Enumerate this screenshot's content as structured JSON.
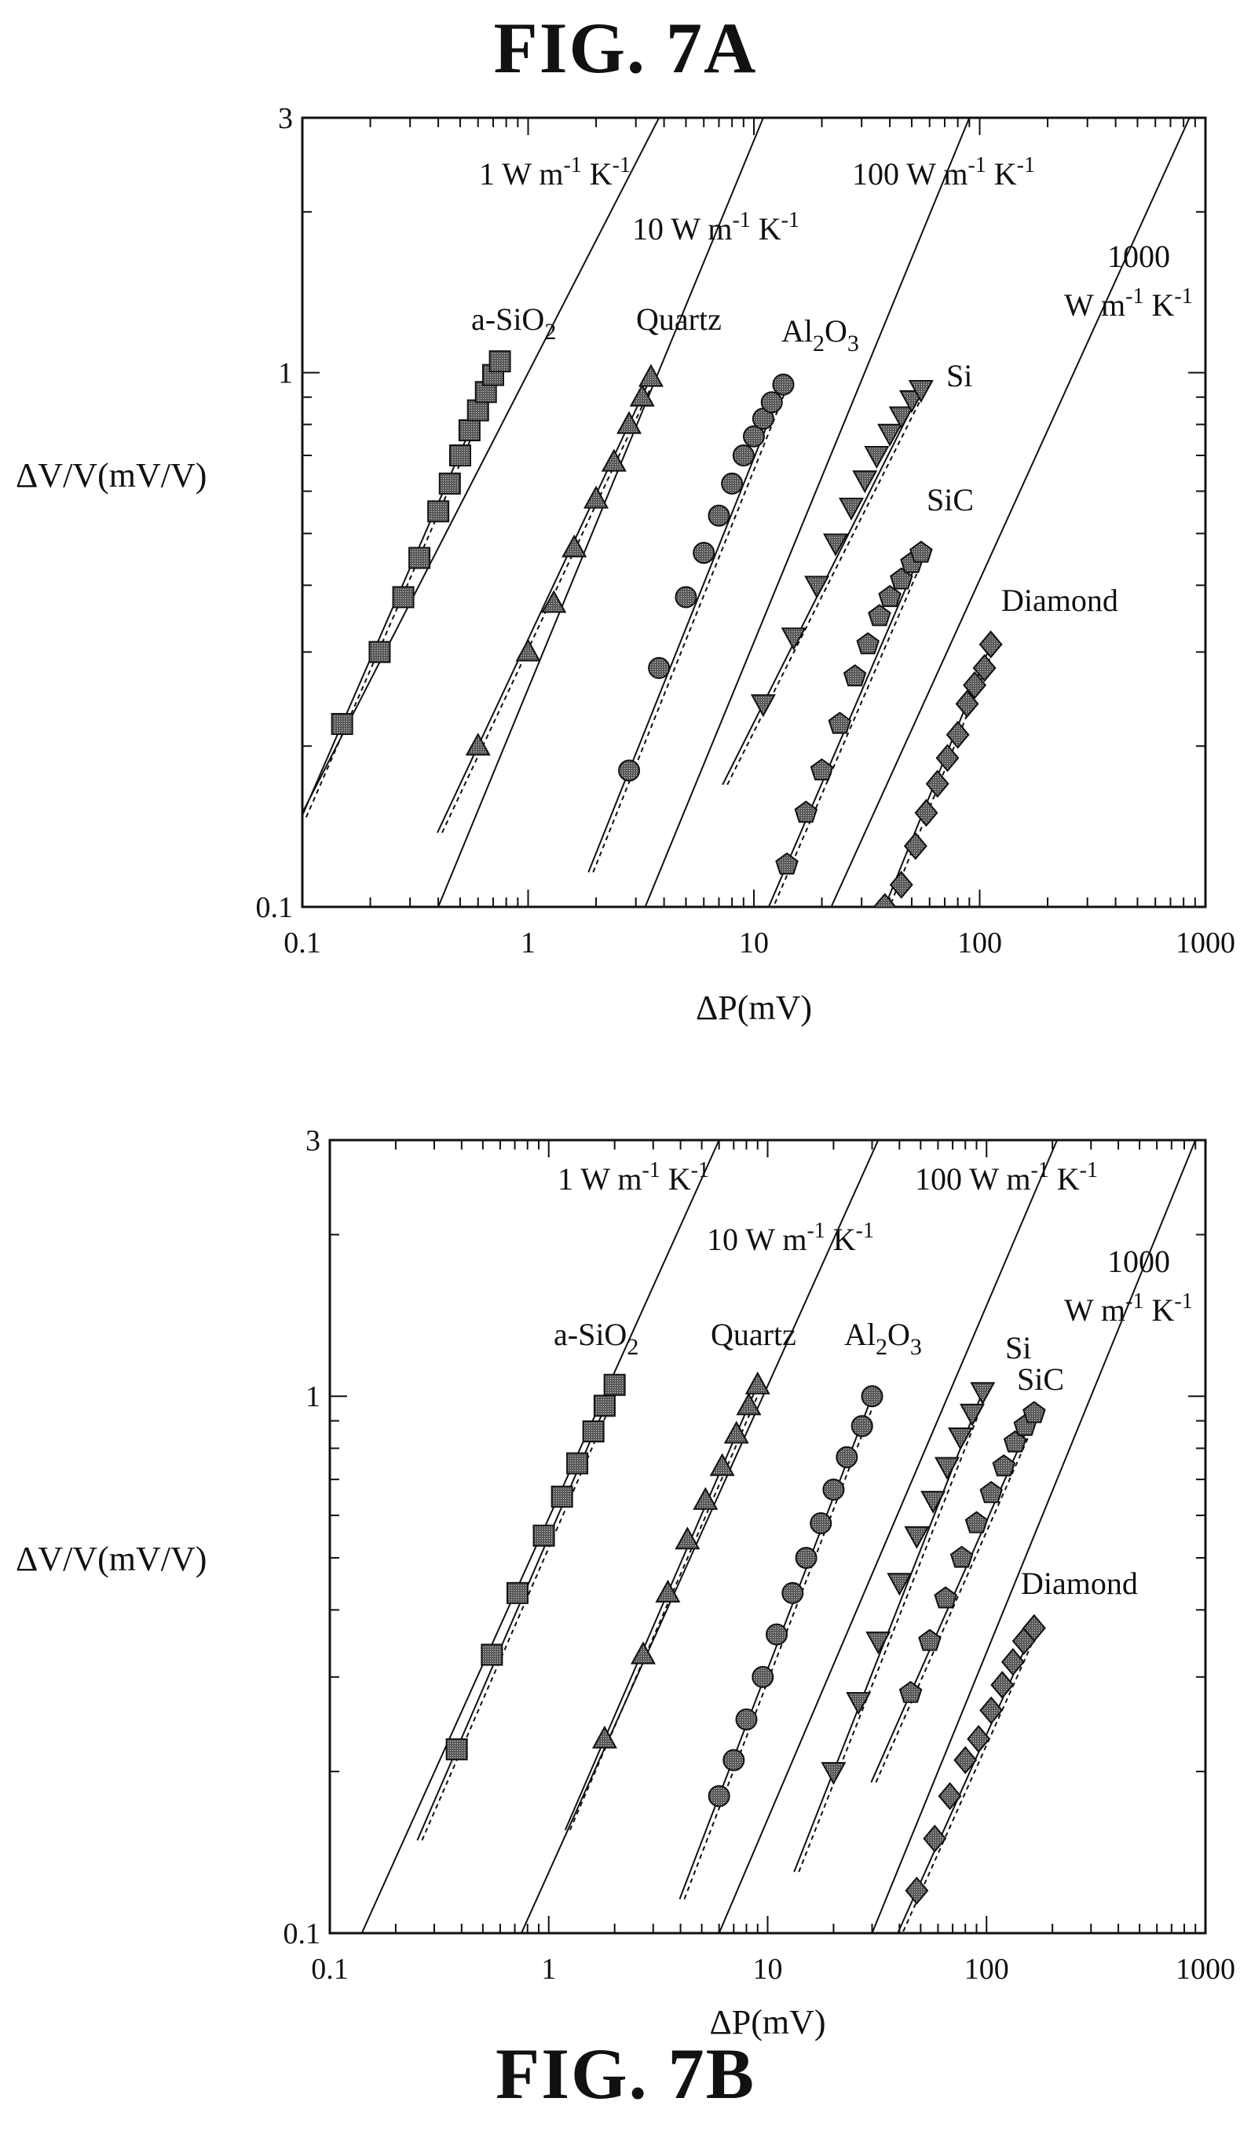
{
  "figures": [
    {
      "caption": "FIG. 7A"
    },
    {
      "caption": "FIG. 7B"
    }
  ],
  "chart_data": [
    {
      "type": "scatter",
      "title": "FIG. 7A",
      "xlabel": "ΔP(mV)",
      "ylabel": "ΔV/V(mV/V)",
      "xscale": "log",
      "yscale": "log",
      "xlim": [
        0.1,
        1000
      ],
      "ylim": [
        0.1,
        3
      ],
      "xticks": [
        "0.1",
        "1",
        "10",
        "100",
        "1000"
      ],
      "yticks": [
        "0.1",
        "1",
        "3"
      ],
      "reference_lines": [
        {
          "label": "1 W m-1 K-1",
          "x": [
            0.1,
            3.8
          ],
          "y": [
            0.15,
            3.0
          ]
        },
        {
          "label": "10 W m-1 K-1",
          "x": [
            0.4,
            11
          ],
          "y": [
            0.1,
            3.0
          ]
        },
        {
          "label": "100 W m-1 K-1",
          "x": [
            3.3,
            90
          ],
          "y": [
            0.1,
            3.0
          ]
        },
        {
          "label": "1000 W m-1 K-1",
          "x": [
            22,
            850
          ],
          "y": [
            0.1,
            3.0
          ]
        }
      ],
      "series": [
        {
          "name": "a-SiO2",
          "marker": "square",
          "x": [
            0.15,
            0.22,
            0.28,
            0.33,
            0.4,
            0.45,
            0.5,
            0.55,
            0.6,
            0.65,
            0.7,
            0.75
          ],
          "y": [
            0.22,
            0.3,
            0.38,
            0.45,
            0.55,
            0.62,
            0.7,
            0.78,
            0.85,
            0.92,
            0.99,
            1.05
          ]
        },
        {
          "name": "Quartz",
          "marker": "triangle",
          "x": [
            0.6,
            1.0,
            1.3,
            1.6,
            2.0,
            2.4,
            2.8,
            3.2,
            3.5
          ],
          "y": [
            0.2,
            0.3,
            0.37,
            0.47,
            0.58,
            0.68,
            0.8,
            0.9,
            0.98
          ]
        },
        {
          "name": "Al2O3",
          "marker": "circle",
          "x": [
            2.8,
            3.8,
            5.0,
            6.0,
            7.0,
            8.0,
            9.0,
            10.0,
            11.0,
            12.0,
            13.5
          ],
          "y": [
            0.18,
            0.28,
            0.38,
            0.46,
            0.54,
            0.62,
            0.7,
            0.76,
            0.82,
            0.88,
            0.95
          ]
        },
        {
          "name": "Si",
          "marker": "triangle-down",
          "x": [
            11,
            15,
            19,
            23,
            27,
            31,
            35,
            40,
            45,
            50,
            55
          ],
          "y": [
            0.24,
            0.32,
            0.4,
            0.48,
            0.56,
            0.63,
            0.7,
            0.77,
            0.83,
            0.89,
            0.93
          ]
        },
        {
          "name": "SiC",
          "marker": "pentagon",
          "x": [
            14,
            17,
            20,
            24,
            28,
            32,
            36,
            40,
            45,
            50,
            55
          ],
          "y": [
            0.12,
            0.15,
            0.18,
            0.22,
            0.27,
            0.31,
            0.35,
            0.38,
            0.41,
            0.44,
            0.46
          ]
        },
        {
          "name": "Diamond",
          "marker": "diamond",
          "x": [
            38,
            45,
            52,
            58,
            65,
            72,
            80,
            88,
            95,
            105,
            112
          ],
          "y": [
            0.1,
            0.11,
            0.13,
            0.15,
            0.17,
            0.19,
            0.21,
            0.24,
            0.26,
            0.28,
            0.31
          ]
        }
      ]
    },
    {
      "type": "scatter",
      "title": "FIG. 7B",
      "xlabel": "ΔP(mV)",
      "ylabel": "ΔV/V(mV/V)",
      "xscale": "log",
      "yscale": "log",
      "xlim": [
        0.1,
        1000
      ],
      "ylim": [
        0.1,
        3
      ],
      "xticks": [
        "0.1",
        "1",
        "10",
        "100",
        "1000"
      ],
      "yticks": [
        "0.1",
        "1",
        "3"
      ],
      "reference_lines": [
        {
          "label": "1 W m-1 K-1",
          "x": [
            0.14,
            6
          ],
          "y": [
            0.1,
            3.0
          ]
        },
        {
          "label": "10 W m-1 K-1",
          "x": [
            0.75,
            32
          ],
          "y": [
            0.1,
            3.0
          ]
        },
        {
          "label": "100 W m-1 K-1",
          "x": [
            6.0,
            210
          ],
          "y": [
            0.1,
            3.0
          ]
        },
        {
          "label": "1000 W m-1 K-1",
          "x": [
            30,
            900
          ],
          "y": [
            0.1,
            3.0
          ]
        }
      ],
      "series": [
        {
          "name": "a-SiO2",
          "marker": "square",
          "x": [
            0.38,
            0.55,
            0.72,
            0.95,
            1.15,
            1.35,
            1.6,
            1.8,
            2.0
          ],
          "y": [
            0.22,
            0.33,
            0.43,
            0.55,
            0.65,
            0.75,
            0.86,
            0.96,
            1.05
          ]
        },
        {
          "name": "Quartz",
          "marker": "triangle",
          "x": [
            1.8,
            2.7,
            3.5,
            4.3,
            5.2,
            6.2,
            7.2,
            8.2,
            9.0
          ],
          "y": [
            0.23,
            0.33,
            0.43,
            0.54,
            0.64,
            0.74,
            0.85,
            0.96,
            1.05
          ]
        },
        {
          "name": "Al2O3",
          "marker": "circle",
          "x": [
            6.0,
            7.0,
            8.0,
            9.5,
            11.0,
            13.0,
            15.0,
            17.5,
            20.0,
            23.0,
            27.0,
            30.0
          ],
          "y": [
            0.18,
            0.21,
            0.25,
            0.3,
            0.36,
            0.43,
            0.5,
            0.58,
            0.67,
            0.77,
            0.88,
            1.0
          ]
        },
        {
          "name": "Si",
          "marker": "triangle-down",
          "x": [
            20,
            26,
            32,
            40,
            48,
            57,
            66,
            76,
            86,
            96
          ],
          "y": [
            0.2,
            0.27,
            0.35,
            0.45,
            0.55,
            0.64,
            0.74,
            0.84,
            0.93,
            1.02
          ]
        },
        {
          "name": "SiC",
          "marker": "pentagon",
          "x": [
            45,
            55,
            65,
            77,
            90,
            105,
            120,
            135,
            150,
            165
          ],
          "y": [
            0.28,
            0.35,
            0.42,
            0.5,
            0.58,
            0.66,
            0.74,
            0.82,
            0.88,
            0.93
          ]
        },
        {
          "name": "Diamond",
          "marker": "diamond",
          "x": [
            48,
            58,
            68,
            80,
            92,
            105,
            118,
            132,
            148,
            165
          ],
          "y": [
            0.12,
            0.15,
            0.18,
            0.21,
            0.23,
            0.26,
            0.29,
            0.32,
            0.35,
            0.37
          ]
        }
      ]
    }
  ]
}
